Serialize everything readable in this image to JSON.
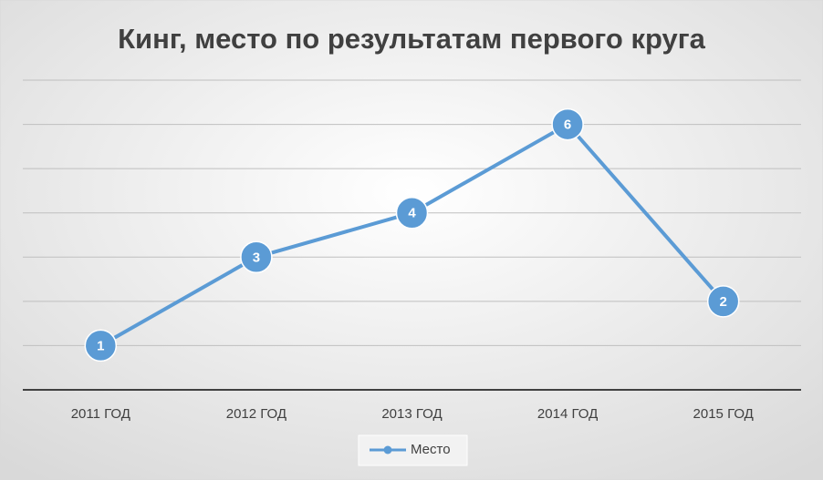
{
  "chart_data": {
    "type": "line",
    "title": "Кинг, место по результатам первого круга",
    "categories": [
      "2011 ГОД",
      "2012 ГОД",
      "2013 ГОД",
      "2014 ГОД",
      "2015 ГОД"
    ],
    "series": [
      {
        "name": "Место",
        "color": "#5b9bd5",
        "values": [
          1,
          3,
          4,
          6,
          2
        ]
      }
    ],
    "ylim": [
      0,
      7
    ],
    "yticks": [
      0,
      1,
      2,
      3,
      4,
      5,
      6,
      7
    ],
    "grid": true,
    "legend": "bottom"
  }
}
